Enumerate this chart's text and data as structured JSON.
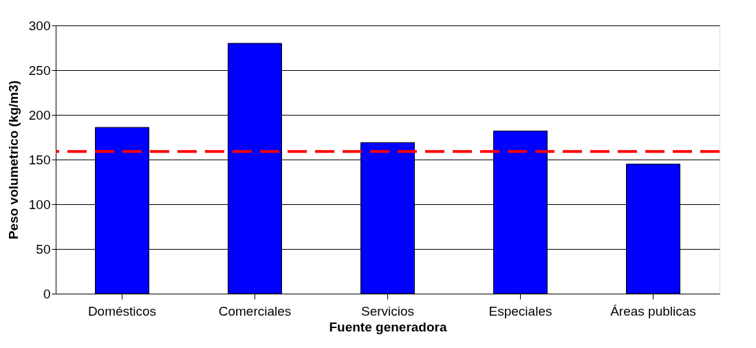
{
  "chart_data": {
    "type": "bar",
    "xlabel": "Fuente generadora",
    "ylabel": "Peso volumetrico (kg/m3)",
    "categories": [
      "Domésticos",
      "Comerciales",
      "Servicios",
      "Especiales",
      "Áreas publicas"
    ],
    "values": [
      186,
      280,
      169,
      182,
      145
    ],
    "color": "#0000ff",
    "ylim": [
      0,
      300
    ],
    "yticks": [
      0,
      50,
      100,
      150,
      200,
      250,
      300
    ],
    "grid": "y",
    "ref_lines": [
      {
        "axis": "y",
        "value": 159,
        "color": "#ff0000",
        "line_style": "dashed"
      }
    ]
  }
}
